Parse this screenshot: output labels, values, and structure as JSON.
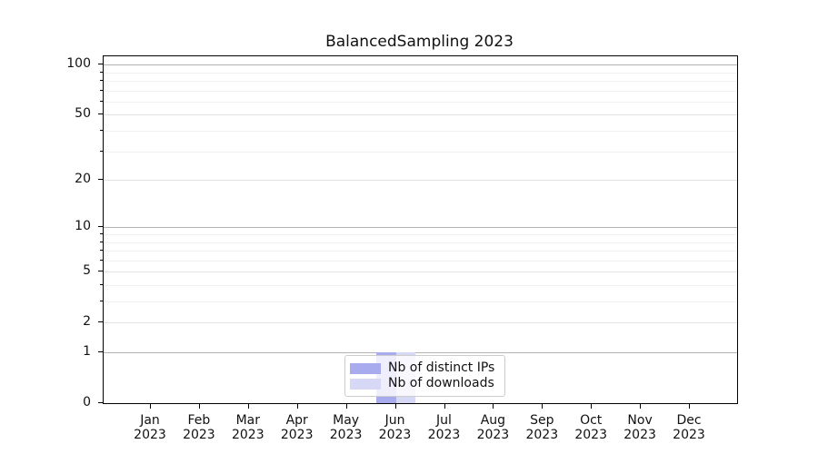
{
  "title": "BalancedSampling 2023",
  "colors": {
    "bar_distinct_ips": "#a9abef",
    "bar_downloads": "#d7d8f6",
    "grid_power10": "#b3b3b3",
    "grid_major": "#e2e2e2",
    "grid_minor": "#f2f2f2",
    "spine": "#000000",
    "legend_border": "#cccccc",
    "text": "#111111"
  },
  "legend": {
    "items": [
      {
        "label": "Nb of distinct IPs",
        "color": "#a9abef"
      },
      {
        "label": "Nb of downloads",
        "color": "#d7d8f6"
      }
    ],
    "position": "lower center"
  },
  "chart_data": {
    "type": "bar",
    "title": "BalancedSampling 2023",
    "categories": [
      "Jan",
      "Feb",
      "Mar",
      "Apr",
      "May",
      "Jun",
      "Jul",
      "Aug",
      "Sep",
      "Oct",
      "Nov",
      "Dec"
    ],
    "year": "2023",
    "series": [
      {
        "name": "Nb of distinct IPs",
        "color": "#a9abef",
        "values": [
          0,
          0,
          0,
          0,
          0,
          1,
          0,
          0,
          0,
          0,
          0,
          0
        ]
      },
      {
        "name": "Nb of downloads",
        "color": "#d7d8f6",
        "values": [
          0,
          0,
          0,
          0,
          0,
          1,
          0,
          0,
          0,
          0,
          0,
          0
        ]
      }
    ],
    "xlabel": "",
    "ylabel": "",
    "y_scale": "log1p",
    "y_major_ticks": [
      0,
      1,
      2,
      5,
      10,
      20,
      50,
      100
    ],
    "y_minor_ticks": [
      3,
      4,
      6,
      7,
      8,
      9,
      30,
      40,
      60,
      70,
      80,
      90
    ],
    "ylim": [
      0,
      112
    ],
    "grid": true,
    "legend_position": "lower center"
  }
}
